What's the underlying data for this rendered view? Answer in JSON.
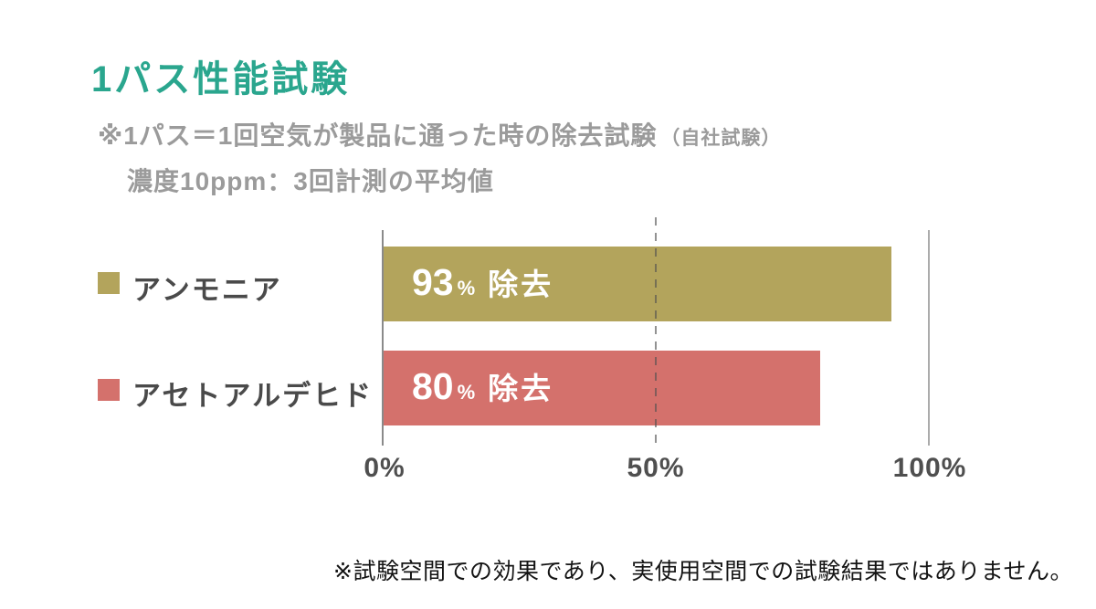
{
  "page": {
    "background": "#ffffff"
  },
  "header": {
    "title": "1パス性能試験",
    "title_color": "#2aa68e",
    "subtitle_line1": "※1パス＝1回空気が製品に通った時の除去試験",
    "subtitle_line1_paren": "（自社試験）",
    "subtitle_line2": "濃度10ppm：3回計測の平均値"
  },
  "chart_data": {
    "type": "bar",
    "orientation": "horizontal",
    "title": "1パス性能試験",
    "categories": [
      "アンモニア",
      "アセトアルデヒド"
    ],
    "values": [
      93,
      80
    ],
    "series_colors": [
      "#b3a45c",
      "#d4716c"
    ],
    "bar_labels": [
      {
        "number": "93",
        "percent": "%",
        "text": "除去"
      },
      {
        "number": "80",
        "percent": "%",
        "text": "除去"
      }
    ],
    "xlim": [
      0,
      100
    ],
    "tick_values": [
      0,
      50,
      100
    ],
    "tick_labels": [
      "0%",
      "50%",
      "100%"
    ],
    "grid": "vertical lines at 0% (solid), 50% (dashed, drawn over bars), 100% (solid light)",
    "legend_position": "left of each bar row"
  },
  "footer": {
    "note": "※試験空間での効果であり、実使用空間での試験結果ではありません。"
  }
}
